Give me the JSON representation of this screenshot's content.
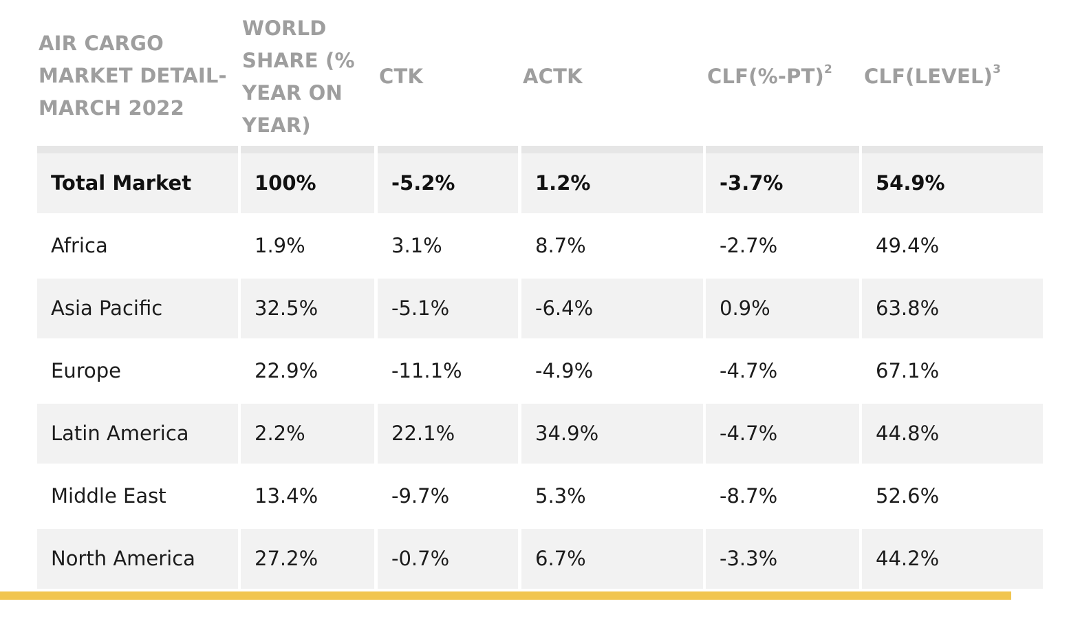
{
  "table": {
    "headers": [
      {
        "lines": [
          "AIR CARGO",
          "MARKET DETAIL-",
          "MARCH 2022"
        ],
        "sup": ""
      },
      {
        "lines": [
          "WORLD",
          "SHARE (%",
          "YEAR ON",
          "YEAR)"
        ],
        "sup": ""
      },
      {
        "lines": [
          "CTK"
        ],
        "sup": ""
      },
      {
        "lines": [
          "ACTK"
        ],
        "sup": ""
      },
      {
        "lines": [
          "CLF(%-PT)"
        ],
        "sup": "2"
      },
      {
        "lines": [
          "CLF(LEVEL)"
        ],
        "sup": "3"
      }
    ],
    "rows": [
      {
        "region": "Total Market",
        "world_share": "100%",
        "ctk": "-5.2%",
        "actk": "1.2%",
        "clf_pt": "-3.7%",
        "clf_level": "54.9%"
      },
      {
        "region": "Africa",
        "world_share": "1.9%",
        "ctk": "3.1%",
        "actk": "8.7%",
        "clf_pt": "-2.7%",
        "clf_level": "49.4%"
      },
      {
        "region": "Asia Pacific",
        "world_share": "32.5%",
        "ctk": "-5.1%",
        "actk": "-6.4%",
        "clf_pt": "0.9%",
        "clf_level": "63.8%"
      },
      {
        "region": "Europe",
        "world_share": "22.9%",
        "ctk": "-11.1%",
        "actk": "-4.9%",
        "clf_pt": "-4.7%",
        "clf_level": "67.1%"
      },
      {
        "region": "Latin America",
        "world_share": "2.2%",
        "ctk": "22.1%",
        "actk": "34.9%",
        "clf_pt": "-4.7%",
        "clf_level": "44.8%"
      },
      {
        "region": "Middle East",
        "world_share": "13.4%",
        "ctk": "-9.7%",
        "actk": "5.3%",
        "clf_pt": "-8.7%",
        "clf_level": "52.6%"
      },
      {
        "region": "North America",
        "world_share": "27.2%",
        "ctk": "-0.7%",
        "actk": "6.7%",
        "clf_pt": "-3.3%",
        "clf_level": "44.2%"
      }
    ]
  },
  "colors": {
    "header_text": "#9e9e9e",
    "shaded_row": "#f2f2f2",
    "rule_top": "#e6e6e6",
    "rule_bottom": "#f1c550"
  }
}
